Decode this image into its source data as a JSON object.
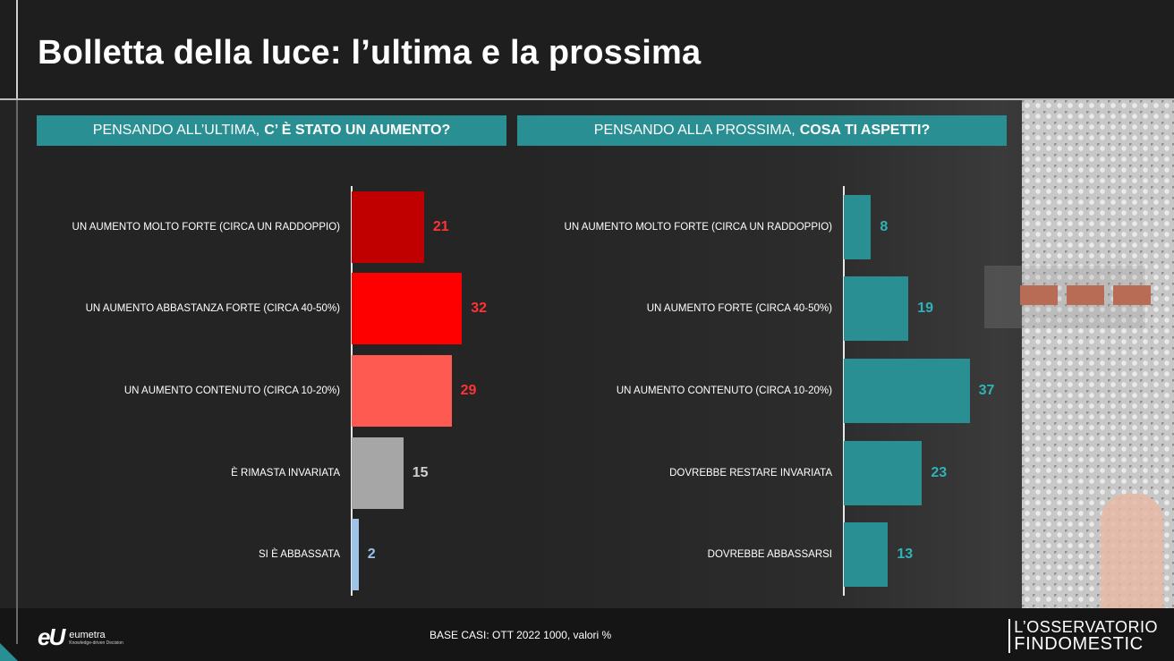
{
  "title_bold": "Bolletta della luce:",
  "title_rest": " l’ultima e la prossima",
  "left_header": {
    "plain": "PENSANDO ALL’ULTIMA,",
    "bold": "C’ È STATO UN AUMENTO?"
  },
  "right_header": {
    "plain": "PENSANDO ALLA PROSSIMA,",
    "bold": "COSA TI ASPETTI?"
  },
  "chart_data": [
    {
      "type": "bar",
      "orientation": "horizontal",
      "title": "PENSANDO ALL’ULTIMA, C’ È STATO UN AUMENTO?",
      "categories": [
        "UN AUMENTO MOLTO FORTE (CIRCA UN RADDOPPIO)",
        "UN AUMENTO ABBASTANZA FORTE (CIRCA 40-50%)",
        "UN AUMENTO CONTENUTO (CIRCA 10-20%)",
        "È RIMASTA INVARIATA",
        "SI È ABBASSATA"
      ],
      "values": [
        21,
        32,
        29,
        15,
        2
      ],
      "bar_colors": [
        "#c00000",
        "#ff0000",
        "#ff5a52",
        "#a6a6a6",
        "#9dc3e6"
      ],
      "label_colors": [
        "#ff3333",
        "#ff3333",
        "#ff3333",
        "#d0d0d0",
        "#9dc3e6"
      ],
      "xlim": [
        0,
        40
      ]
    },
    {
      "type": "bar",
      "orientation": "horizontal",
      "title": "PENSANDO ALLA PROSSIMA, COSA TI ASPETTI?",
      "categories": [
        "UN AUMENTO MOLTO FORTE (CIRCA UN RADDOPPIO)",
        "UN AUMENTO FORTE (CIRCA 40-50%)",
        "UN AUMENTO CONTENUTO (CIRCA 10-20%)",
        "DOVREBBE RESTARE INVARIATA",
        "DOVREBBE ABBASSARSI"
      ],
      "values": [
        8,
        19,
        37,
        23,
        13
      ],
      "bar_colors": [
        "#2a8f93",
        "#2a8f93",
        "#2a8f93",
        "#2a8f93",
        "#2a8f93"
      ],
      "label_colors": [
        "#2fb3b8",
        "#2fb3b8",
        "#2fb3b8",
        "#2fb3b8",
        "#2fb3b8"
      ],
      "xlim": [
        0,
        40
      ]
    }
  ],
  "footer": {
    "base_note": "BASE CASI: OTT 2022 1000, valori %",
    "logo_mark": "eU",
    "logo_name": "eumetra",
    "logo_tag": "Knowledge-driven Decision",
    "brand_line1": "L’OSSERVATORIO",
    "brand_line2": "FINDOMESTIC"
  }
}
